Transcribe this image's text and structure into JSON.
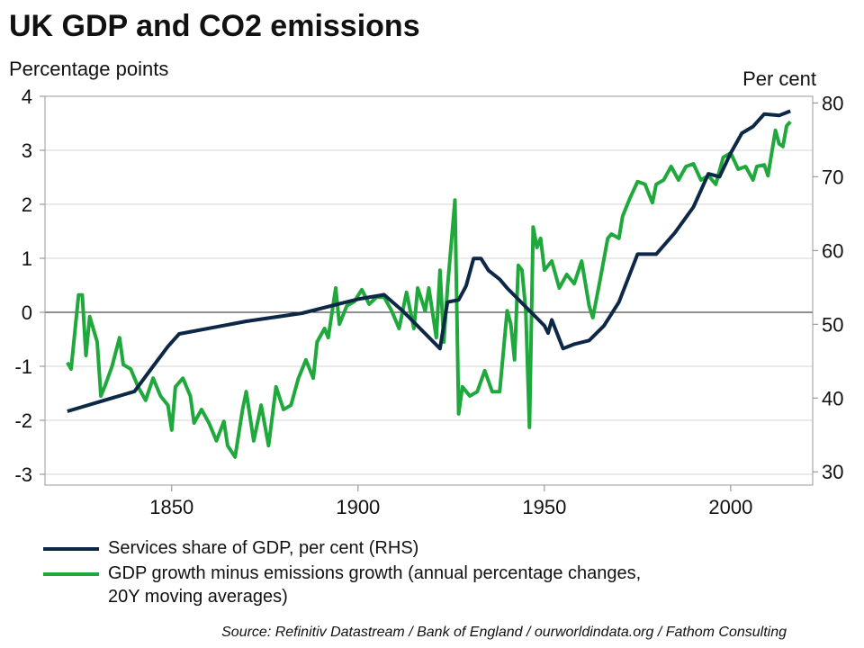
{
  "chart_data": {
    "type": "line",
    "title": "UK GDP and CO2 emissions",
    "ylabel": "Percentage points",
    "y2label": "Per cent",
    "source": "Source: Refinitiv Datastream / Bank of England / ourworldindata.org / Fathom Consulting",
    "xlim": [
      1816,
      2022
    ],
    "xticks": [
      1850,
      1900,
      1950,
      2000
    ],
    "ylim": [
      -3.2,
      4
    ],
    "yticks": [
      -3,
      -2,
      -1,
      0,
      1,
      2,
      3,
      4
    ],
    "y2lim": [
      28.2,
      80.9
    ],
    "y2ticks": [
      30,
      40,
      50,
      60,
      70,
      80
    ],
    "grid": true,
    "series": [
      {
        "name": "Services share of GDP, per cent (RHS)",
        "color": "#0d2847",
        "axis": "y2",
        "x": [
          1822,
          1840,
          1845,
          1849,
          1852,
          1870,
          1885,
          1900,
          1907,
          1912,
          1922,
          1924,
          1927,
          1929,
          1931,
          1933,
          1935,
          1938,
          1940,
          1950,
          1951,
          1952,
          1955,
          1958,
          1962,
          1966,
          1970,
          1975,
          1980,
          1985,
          1990,
          1994,
          1997,
          2000,
          2003,
          2006,
          2009,
          2013,
          2016
        ],
        "values": [
          38.2,
          40.9,
          44.3,
          47,
          48.7,
          50.4,
          51.5,
          53.4,
          54,
          51.8,
          46.7,
          53,
          53.3,
          55.2,
          58.9,
          58.9,
          57.3,
          56.1,
          54.9,
          49.8,
          48.8,
          50.6,
          46.7,
          47.3,
          47.8,
          49.8,
          53,
          59.5,
          59.5,
          62.4,
          65.9,
          70.4,
          70,
          73.2,
          75.9,
          76.8,
          78.5,
          78.3,
          78.9
        ]
      },
      {
        "name": "GDP growth minus emissions growth (annual percentage changes, 20Y moving averages)",
        "color": "#1fa83c",
        "x": [
          1822,
          1823,
          1825,
          1826,
          1827,
          1828,
          1830,
          1831,
          1832,
          1834,
          1836,
          1837,
          1839,
          1841,
          1843,
          1845,
          1847,
          1849,
          1850,
          1851,
          1853,
          1855,
          1856,
          1858,
          1860,
          1862,
          1864,
          1865,
          1867,
          1869,
          1870,
          1872,
          1874,
          1876,
          1878,
          1880,
          1882,
          1884,
          1886,
          1888,
          1889,
          1891,
          1892,
          1894,
          1895,
          1897,
          1899,
          1901,
          1903,
          1905,
          1907,
          1909,
          1911,
          1913,
          1915,
          1916,
          1918,
          1919,
          1921,
          1922,
          1923,
          1924,
          1926,
          1927,
          1928,
          1930,
          1932,
          1934,
          1936,
          1938,
          1940,
          1941,
          1942,
          1943,
          1944,
          1945,
          1946,
          1947,
          1948,
          1949,
          1950,
          1952,
          1954,
          1956,
          1958,
          1960,
          1962,
          1963,
          1965,
          1967,
          1968,
          1970,
          1971,
          1973,
          1975,
          1977,
          1979,
          1980,
          1982,
          1984,
          1986,
          1988,
          1990,
          1992,
          1994,
          1996,
          1998,
          2000,
          2002,
          2004,
          2006,
          2007,
          2009,
          2010,
          2012,
          2013,
          2014,
          2015,
          2016
        ],
        "values": [
          -0.93,
          -1.05,
          0.32,
          0.32,
          -0.8,
          -0.08,
          -0.55,
          -1.55,
          -1.38,
          -1.0,
          -0.47,
          -0.97,
          -1.05,
          -1.38,
          -1.63,
          -1.22,
          -1.55,
          -1.72,
          -2.18,
          -1.38,
          -1.22,
          -1.55,
          -2.05,
          -1.8,
          -2.05,
          -2.38,
          -2.02,
          -2.47,
          -2.68,
          -1.8,
          -1.47,
          -2.38,
          -1.72,
          -2.47,
          -1.38,
          -1.8,
          -1.72,
          -1.22,
          -0.88,
          -1.22,
          -0.55,
          -0.3,
          -0.47,
          0.45,
          -0.22,
          0.12,
          0.2,
          0.42,
          0.15,
          0.28,
          0.28,
          0.03,
          -0.3,
          0.37,
          -0.3,
          0.45,
          0.03,
          0.45,
          -0.47,
          0.78,
          -0.55,
          0.45,
          2.08,
          -1.88,
          -1.38,
          -1.55,
          -1.47,
          -1.08,
          -1.47,
          -1.47,
          0.03,
          -0.22,
          -0.88,
          0.87,
          0.78,
          0.03,
          -2.13,
          1.58,
          1.2,
          1.37,
          0.78,
          0.95,
          0.45,
          0.7,
          0.53,
          0.95,
          0.12,
          -0.1,
          0.62,
          1.37,
          1.45,
          1.37,
          1.78,
          2.12,
          2.42,
          2.37,
          2.03,
          2.37,
          2.45,
          2.7,
          2.45,
          2.7,
          2.75,
          2.45,
          2.53,
          2.37,
          2.87,
          2.95,
          2.65,
          2.7,
          2.45,
          2.7,
          2.73,
          2.53,
          3.37,
          3.12,
          3.07,
          3.45,
          3.53
        ]
      }
    ]
  }
}
